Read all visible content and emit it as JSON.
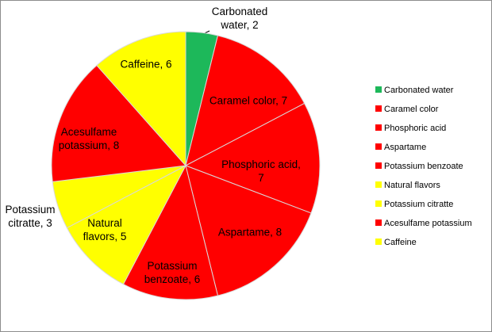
{
  "chart_data": {
    "type": "pie",
    "categories": [
      "Carbonated water",
      "Caramel color",
      "Phosphoric acid",
      "Aspartame",
      "Potassium benzoate",
      "Natural flavors",
      "Potassium citratte",
      "Acesulfame potassium",
      "Caffeine"
    ],
    "values": [
      2,
      7,
      7,
      8,
      6,
      5,
      3,
      8,
      6
    ],
    "value_labels": [
      "Carbonated water, 2",
      "Caramel color, 7",
      "Phosphoric acid, 7",
      "Aspartame, 8",
      "Potassium benzoate, 6",
      "Natural flavors, 5",
      "Potassium citratte, 3",
      "Acesulfame potassium, 8",
      "Caffeine, 6"
    ],
    "colors": [
      "#1db85a",
      "#ff0000",
      "#ff0000",
      "#ff0000",
      "#ff0000",
      "#ffff00",
      "#ffff00",
      "#ff0000",
      "#ffff00"
    ],
    "legend": "right"
  }
}
